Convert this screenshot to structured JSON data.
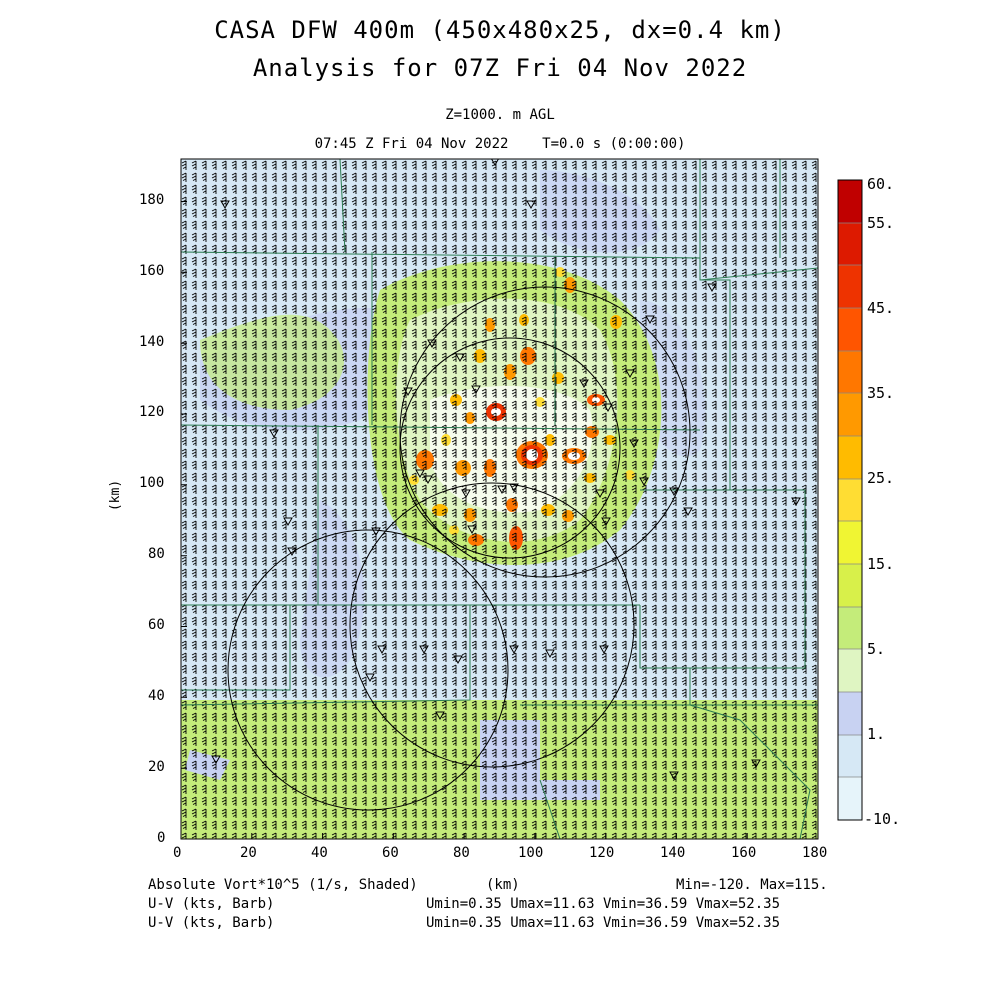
{
  "header": {
    "title_line1": "CASA DFW 400m (450x480x25, dx=0.4 km)",
    "title_line2": "Analysis for 07Z Fri 04 Nov 2022",
    "level": "Z=1000. m AGL",
    "valid_time": "07:45 Z Fri 04 Nov 2022    T=0.0 s (0:00:00)"
  },
  "axes": {
    "x_label": "(km)",
    "y_label": "(km)",
    "x_ticks": [
      "0",
      "20",
      "40",
      "60",
      "80",
      "100",
      "120",
      "140",
      "160",
      "180"
    ],
    "y_ticks": [
      "0",
      "20",
      "40",
      "60",
      "80",
      "100",
      "120",
      "140",
      "160",
      "180"
    ],
    "x_range": [
      0,
      180
    ],
    "y_range": [
      0,
      192
    ]
  },
  "colorbar": {
    "labels": [
      "60.",
      "55.",
      "45.",
      "35.",
      "25.",
      "15.",
      "5.",
      "1.",
      "-10."
    ],
    "colors": [
      "#c00000",
      "#dd1a00",
      "#ee3300",
      "#ff5500",
      "#ff7700",
      "#ff9900",
      "#ffbb00",
      "#ffdd33",
      "#f0f533",
      "#d8f04a",
      "#c4ec7a",
      "#dff5c2",
      "#c8d2f2",
      "#d6e8f5",
      "#e6f4fa"
    ]
  },
  "footer": {
    "field_label": "Absolute Vort*10^5 (1/s, Shaded)",
    "unit_label": "(km)",
    "minmax": "Min=-120. Max=115.",
    "barb1_label": "U-V (kts, Barb)",
    "barb1_stats": "Umin=0.35 Umax=11.63 Vmin=36.59 Vmax=52.35",
    "barb2_label": "U-V (kts, Barb)",
    "barb2_stats": "Umin=0.35 Umax=11.63 Vmin=36.59 Vmax=52.35"
  }
}
